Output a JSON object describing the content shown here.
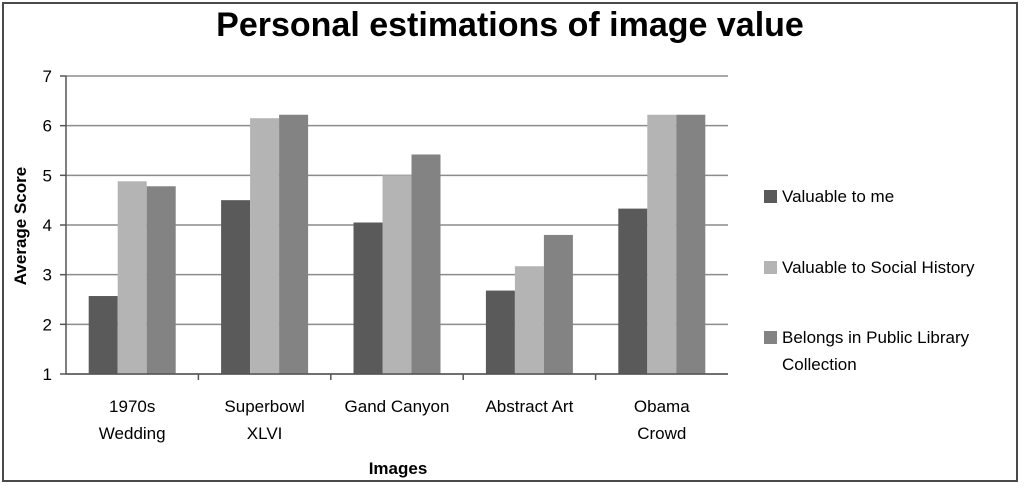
{
  "chart_data": {
    "type": "bar",
    "title": "Personal estimations of image value",
    "xlabel": "Images",
    "ylabel": "Average Score",
    "ylim": [
      1,
      7
    ],
    "yticks": [
      1,
      2,
      3,
      4,
      5,
      6,
      7
    ],
    "grid": true,
    "legend_position": "right",
    "categories": [
      [
        "1970s",
        "Wedding"
      ],
      [
        "Superbowl",
        "XLVI"
      ],
      [
        "Gand Canyon"
      ],
      [
        "Abstract Art"
      ],
      [
        "Obama",
        "Crowd"
      ]
    ],
    "series": [
      {
        "name": "Valuable to me",
        "color": "#5a5a5a",
        "values": [
          2.57,
          4.5,
          4.05,
          2.68,
          4.33
        ]
      },
      {
        "name": "Valuable to Social History",
        "color": "#b4b4b4",
        "values": [
          4.88,
          6.15,
          5.0,
          3.17,
          6.22
        ]
      },
      {
        "name": "Belongs in Public Library Collection",
        "color": "#838383",
        "values": [
          4.78,
          6.22,
          5.42,
          3.8,
          6.22
        ]
      }
    ],
    "legend_lines": [
      [
        "Valuable to me"
      ],
      [
        "Valuable to Social History"
      ],
      [
        "Belongs in  Public Library",
        "Collection"
      ]
    ]
  }
}
